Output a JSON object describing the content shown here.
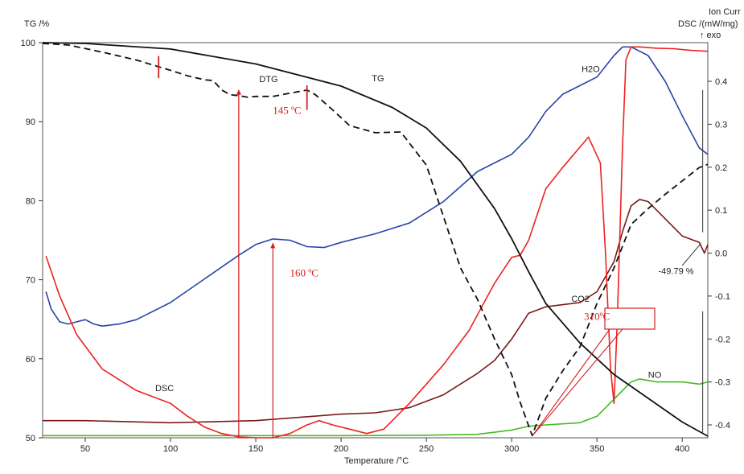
{
  "chart_data": {
    "type": "line",
    "xlabel": "Temperature /°C",
    "ylabel_left": "TG /%",
    "ylabel_right": [
      "Ion Curr",
      "DSC /(mW/mg)",
      "↑ exo"
    ],
    "xlim": [
      25,
      415
    ],
    "ylim_left": [
      50,
      100
    ],
    "ylim_right": [
      -0.43,
      0.49
    ],
    "x_ticks": [
      "50",
      "100",
      "150",
      "200",
      "250",
      "300",
      "350",
      "400"
    ],
    "y_ticks_left": [
      "50",
      "60",
      "70",
      "80",
      "90",
      "100"
    ],
    "y_ticks_right": [
      "-0.4",
      "-0.3",
      "-0.2",
      "-0.1",
      "0.0",
      "0.1",
      "0.2",
      "0.3",
      "0.4"
    ],
    "colors": {
      "TG": "#111111",
      "DTG": "#111111",
      "DSC": "#ee2222",
      "H2O": "#2b44a8",
      "CO2": "#7a1a1a",
      "NO": "#44bb22",
      "annotation": "#d42020"
    },
    "series": [
      {
        "name": "TG",
        "axis": "left",
        "x": [
          25,
          50,
          100,
          150,
          200,
          230,
          250,
          270,
          290,
          300,
          310,
          320,
          340,
          360,
          380,
          400,
          415
        ],
        "y": [
          100,
          99.9,
          99.2,
          97.3,
          94.5,
          91.8,
          89.2,
          85,
          79,
          75.2,
          71,
          67,
          62,
          58,
          55,
          52,
          50.2
        ]
      },
      {
        "name": "DTG",
        "axis": "left",
        "dashed": true,
        "x": [
          25,
          40,
          60,
          80,
          100,
          110,
          120,
          125,
          130,
          135,
          140,
          145,
          150,
          160,
          170,
          180,
          185,
          195,
          205,
          220,
          235,
          250,
          260,
          270,
          280,
          290,
          300,
          305,
          310,
          312,
          315,
          320,
          330,
          340,
          350,
          360,
          370,
          380,
          390,
          400,
          410,
          415
        ],
        "y": [
          99.9,
          99.7,
          98.8,
          97.8,
          96.5,
          95.8,
          95.3,
          95.2,
          94,
          93.4,
          93.3,
          93.1,
          93.2,
          93.2,
          93.6,
          94.0,
          93.4,
          91.5,
          89.5,
          88.6,
          88.7,
          84.5,
          78,
          71.5,
          67.5,
          62.5,
          58,
          54.5,
          51.5,
          50.3,
          52,
          55,
          58.5,
          61.5,
          67,
          71.5,
          77,
          79,
          80.8,
          82.5,
          84.2,
          84.6
        ]
      },
      {
        "name": "DSC",
        "axis": "right",
        "x": [
          27,
          35,
          45,
          60,
          80,
          100,
          110,
          120,
          130,
          140,
          150,
          160,
          170,
          180,
          187,
          195,
          205,
          215,
          225,
          240,
          260,
          275,
          290,
          300,
          305,
          310,
          320,
          330,
          345,
          352,
          355,
          358,
          360,
          362,
          365,
          367,
          370,
          375,
          385,
          395,
          405,
          415
        ],
        "y": [
          -0.007,
          -0.1,
          -0.19,
          -0.27,
          -0.32,
          -0.35,
          -0.38,
          -0.405,
          -0.42,
          -0.428,
          -0.43,
          -0.43,
          -0.42,
          -0.4,
          -0.39,
          -0.4,
          -0.41,
          -0.42,
          -0.41,
          -0.35,
          -0.26,
          -0.18,
          -0.07,
          -0.01,
          -0.005,
          0.03,
          0.15,
          0.2,
          0.27,
          0.21,
          0.0,
          -0.27,
          -0.35,
          -0.15,
          0.25,
          0.45,
          0.48,
          0.48,
          0.477,
          0.476,
          0.472,
          0.47
        ]
      },
      {
        "name": "H2O",
        "axis": "right",
        "x": [
          27,
          30,
          35,
          40,
          45,
          50,
          55,
          60,
          70,
          80,
          100,
          120,
          140,
          150,
          160,
          170,
          180,
          190,
          200,
          220,
          240,
          260,
          280,
          290,
          300,
          310,
          320,
          330,
          340,
          350,
          360,
          365,
          370,
          380,
          390,
          400,
          410,
          415
        ],
        "y": [
          -0.09,
          -0.13,
          -0.16,
          -0.165,
          -0.16,
          -0.155,
          -0.165,
          -0.17,
          -0.165,
          -0.155,
          -0.115,
          -0.06,
          -0.005,
          0.02,
          0.033,
          0.03,
          0.015,
          0.013,
          0.025,
          0.045,
          0.07,
          0.12,
          0.19,
          0.21,
          0.23,
          0.27,
          0.33,
          0.37,
          0.39,
          0.41,
          0.46,
          0.48,
          0.48,
          0.46,
          0.4,
          0.32,
          0.245,
          0.23
        ]
      },
      {
        "name": "CO2",
        "axis": "right",
        "x": [
          25,
          50,
          100,
          150,
          200,
          220,
          240,
          260,
          280,
          290,
          300,
          310,
          320,
          330,
          340,
          350,
          360,
          365,
          370,
          375,
          380,
          390,
          400,
          410,
          413,
          415
        ],
        "y": [
          -0.39,
          -0.39,
          -0.395,
          -0.39,
          -0.375,
          -0.372,
          -0.36,
          -0.33,
          -0.28,
          -0.25,
          -0.2,
          -0.14,
          -0.125,
          -0.12,
          -0.115,
          -0.09,
          -0.02,
          0.05,
          0.11,
          0.125,
          0.12,
          0.08,
          0.04,
          0.025,
          0.0,
          0.02
        ]
      },
      {
        "name": "NO",
        "axis": "right",
        "x": [
          25,
          50,
          100,
          150,
          200,
          250,
          280,
          300,
          310,
          320,
          340,
          350,
          360,
          370,
          375,
          385,
          400,
          410,
          415
        ],
        "y": [
          -0.425,
          -0.425,
          -0.425,
          -0.425,
          -0.425,
          -0.424,
          -0.422,
          -0.412,
          -0.403,
          -0.4,
          -0.395,
          -0.38,
          -0.34,
          -0.3,
          -0.293,
          -0.3,
          -0.3,
          -0.305,
          -0.3
        ]
      }
    ],
    "series_labels": [
      {
        "text": "DTG",
        "x": 152,
        "y": 95.0
      },
      {
        "text": "TG",
        "x": 218,
        "y": 95.1
      },
      {
        "text": "H2O",
        "x": 341,
        "y": 96.3
      },
      {
        "text": "CO2",
        "x": 335,
        "y": 67.2
      },
      {
        "text": "NO",
        "x": 380,
        "y": 57.6
      },
      {
        "text": "DSC",
        "x": 91,
        "y": 55.9
      }
    ],
    "annotations": [
      {
        "text": "145 ºC",
        "x": 160,
        "y": 91.0,
        "color": "red"
      },
      {
        "text": "160 ºC",
        "x": 170,
        "y": 70.4,
        "color": "red"
      },
      {
        "text": "310ºC",
        "x": 350,
        "y": 64.9,
        "color": "red",
        "boxed": true
      },
      {
        "text": "-49.79 %",
        "x": 386,
        "y": 70.7,
        "color": "black"
      }
    ]
  }
}
